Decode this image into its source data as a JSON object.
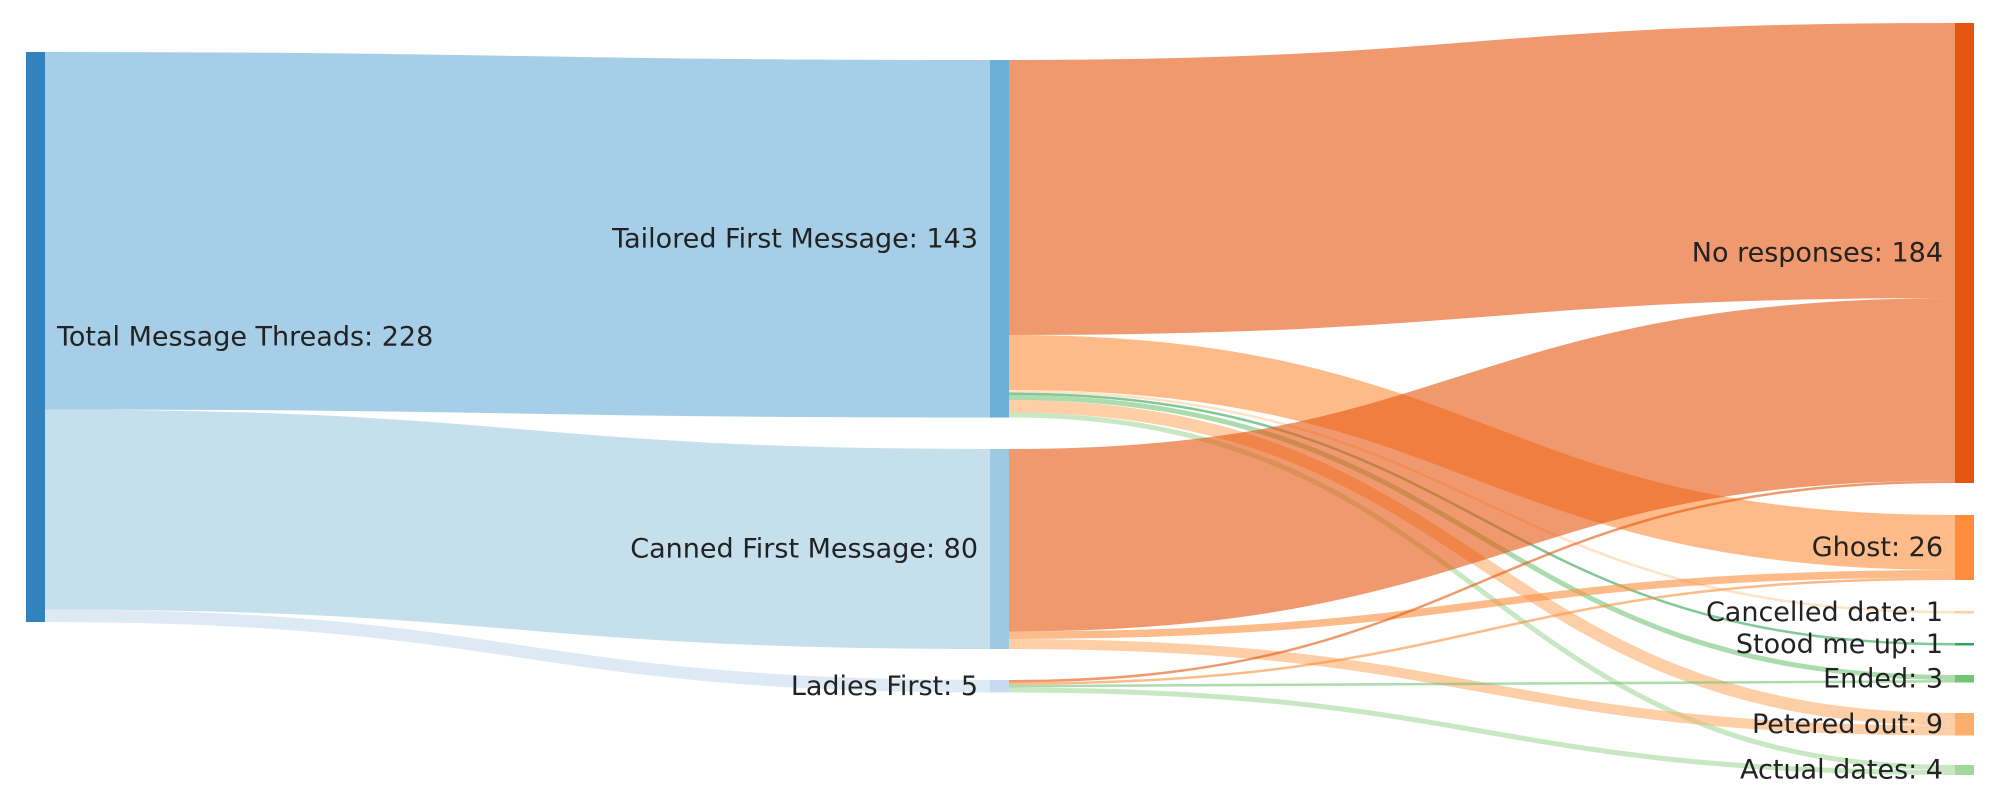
{
  "chart_data": {
    "type": "sankey",
    "nodes": [
      {
        "label": "Total Message Threads: 228",
        "value": 228,
        "color": "#3182bd"
      },
      {
        "label": "Tailored First Message: 143",
        "value": 143,
        "color": "#6baed6"
      },
      {
        "label": "Canned First Message: 80",
        "value": 80,
        "color": "#9ecae1"
      },
      {
        "label": "Ladies First: 5",
        "value": 5,
        "color": "#c6dbef"
      },
      {
        "label": "No responses: 184",
        "value": 184,
        "color": "#e6550d"
      },
      {
        "label": "Ghost: 26",
        "value": 26,
        "color": "#fd8d3c"
      },
      {
        "label": "Cancelled date: 1",
        "value": 1,
        "color": "#fdd0a2"
      },
      {
        "label": "Stood me up: 1",
        "value": 1,
        "color": "#31a354"
      },
      {
        "label": "Ended: 3",
        "value": 3,
        "color": "#74c476"
      },
      {
        "label": "Petered out: 9",
        "value": 9,
        "color": "#fdae6b"
      },
      {
        "label": "Actual dates: 4",
        "value": 4,
        "color": "#a1d99b"
      }
    ],
    "links": [
      {
        "source": 0,
        "target": 1,
        "value": 143
      },
      {
        "source": 0,
        "target": 2,
        "value": 80
      },
      {
        "source": 0,
        "target": 3,
        "value": 5
      },
      {
        "source": 1,
        "target": 4,
        "value": 110
      },
      {
        "source": 1,
        "target": 5,
        "value": 22
      },
      {
        "source": 1,
        "target": 6,
        "value": 1
      },
      {
        "source": 1,
        "target": 7,
        "value": 1
      },
      {
        "source": 1,
        "target": 8,
        "value": 2
      },
      {
        "source": 1,
        "target": 9,
        "value": 5
      },
      {
        "source": 1,
        "target": 10,
        "value": 2
      },
      {
        "source": 2,
        "target": 4,
        "value": 73
      },
      {
        "source": 2,
        "target": 5,
        "value": 3
      },
      {
        "source": 2,
        "target": 9,
        "value": 4
      },
      {
        "source": 3,
        "target": 4,
        "value": 1
      },
      {
        "source": 3,
        "target": 5,
        "value": 1
      },
      {
        "source": 3,
        "target": 8,
        "value": 1
      },
      {
        "source": 3,
        "target": 10,
        "value": 2
      }
    ]
  }
}
